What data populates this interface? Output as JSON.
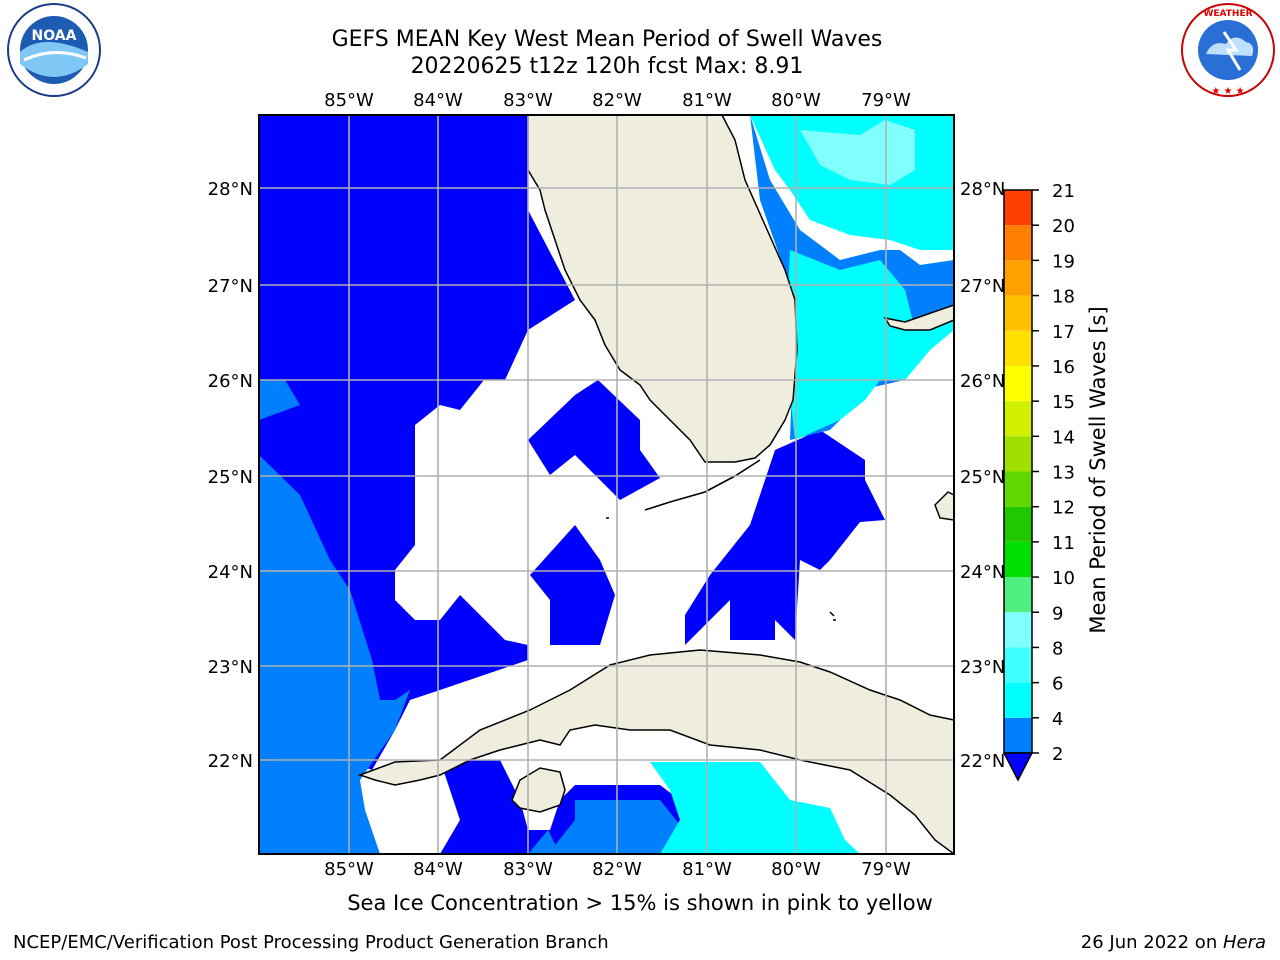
{
  "header": {
    "title_line1": "GEFS MEAN Key West Mean Period of Swell Waves",
    "title_line2": "20220625 t12z 120h fcst   Max: 8.91"
  },
  "logos": {
    "left": {
      "icon": "noaa-logo",
      "text": "NOAA"
    },
    "right": {
      "icon": "nws-logo",
      "text": "NATIONAL WEATHER SERVICE"
    }
  },
  "map": {
    "lon_labels": [
      "85°W",
      "84°W",
      "83°W",
      "82°W",
      "81°W",
      "80°W",
      "79°W"
    ],
    "lat_labels": [
      "28°N",
      "27°N",
      "26°N",
      "25°N",
      "24°N",
      "23°N",
      "22°N"
    ],
    "colors": {
      "land": "#eeedde",
      "band_2_4": "#0000ff",
      "band_4_6": "#0080ff",
      "band_6_8": "#00ffff",
      "band_8_9": "#80ffff",
      "grid": "#b0b0b0"
    }
  },
  "colorbar": {
    "title": "Mean Period of Swell Waves [s]",
    "ticks": [
      "2",
      "4",
      "6",
      "8",
      "9",
      "10",
      "11",
      "12",
      "13",
      "14",
      "15",
      "16",
      "17",
      "18",
      "19",
      "20",
      "21"
    ],
    "colors": [
      "#0080ff",
      "#00ffff",
      "#40ffff",
      "#80ffff",
      "#50f080",
      "#00e000",
      "#20c800",
      "#60d800",
      "#a0e000",
      "#d0f000",
      "#ffff00",
      "#ffe000",
      "#ffc000",
      "#ffa000",
      "#ff8000",
      "#ff4000",
      "#ff0000"
    ]
  },
  "note": "Sea Ice Concentration > 15% is shown in pink to yellow",
  "footer": {
    "left": "NCEP/EMC/Verification Post Processing Product Generation Branch",
    "right_date": "26 Jun 2022 on ",
    "right_host": "Hera"
  }
}
